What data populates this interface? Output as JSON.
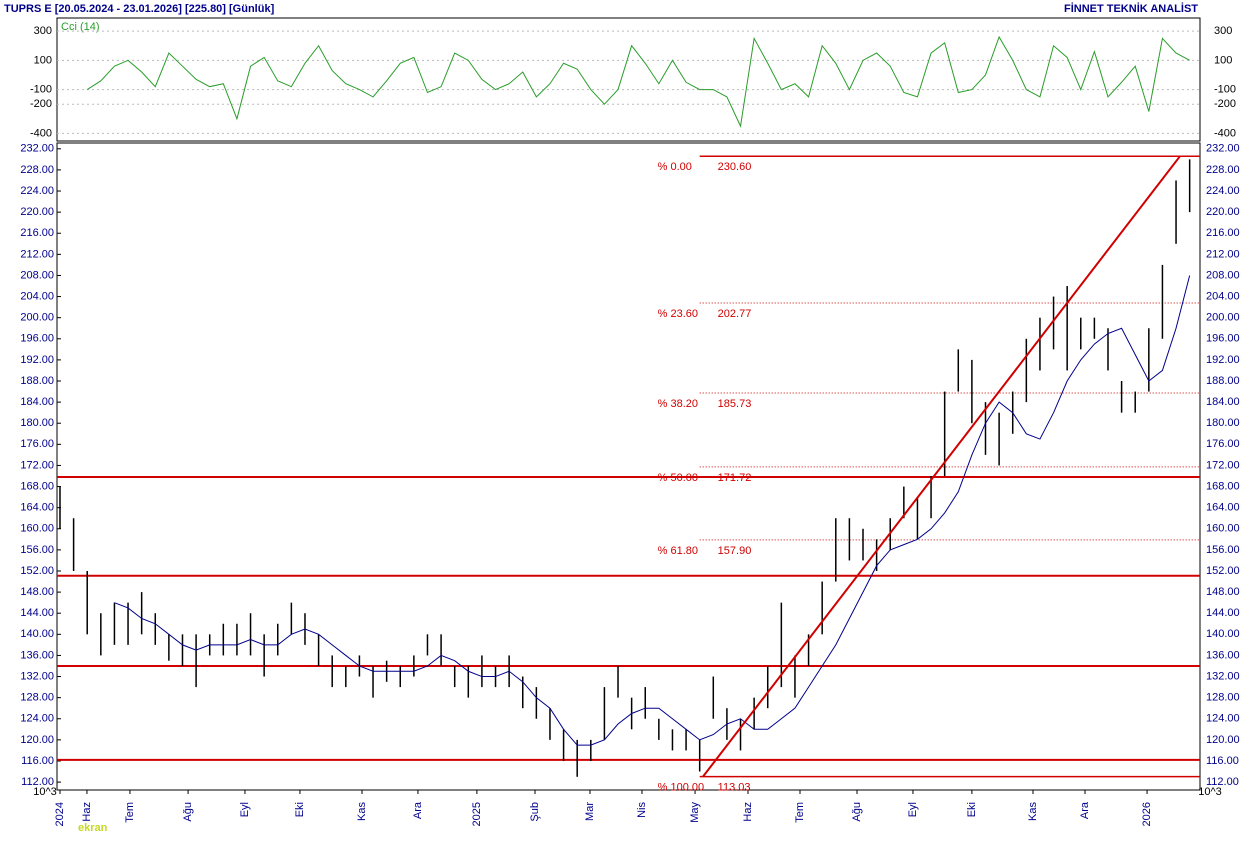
{
  "chart_data": [
    {
      "type": "line",
      "name": "Cci (14)",
      "color": "#2a9d2a",
      "xlim": [
        -0.22,
        83.76
      ],
      "ylim": [
        -445,
        383
      ],
      "yticks": [
        300,
        100,
        -100,
        -200,
        -400
      ],
      "values": [
        null,
        null,
        -100,
        -40,
        60,
        100,
        20,
        -80,
        150,
        60,
        -30,
        -80,
        -60,
        -300,
        60,
        120,
        -40,
        -80,
        80,
        200,
        30,
        -60,
        -100,
        -150,
        -40,
        80,
        120,
        -120,
        -80,
        150,
        100,
        -30,
        -100,
        -60,
        20,
        -150,
        -60,
        80,
        40,
        -100,
        -200,
        -100,
        200,
        80,
        -60,
        100,
        -50,
        -100,
        -100,
        -150,
        -350,
        250,
        80,
        -100,
        -60,
        -150,
        200,
        80,
        -100,
        100,
        150,
        60,
        -120,
        -150,
        150,
        220,
        -120,
        -100,
        0,
        260,
        100,
        -100,
        -150,
        200,
        120,
        -100,
        160,
        -150,
        -50,
        60,
        -250,
        250,
        150,
        100
      ]
    },
    {
      "type": "hl_bar",
      "title": "TUPRS E  [20.05.2024 - 23.01.2026]  [225.80]  [Günlük]",
      "source": "FİNNET TEKNİK ANALİST",
      "unit": "10^3",
      "watermark": "ekran",
      "color": "#000000",
      "xlim": [
        -0.22,
        83.76
      ],
      "xticks": [
        {
          "value": 0,
          "label": "2024"
        },
        {
          "value": 1.98,
          "label": "Haz"
        },
        {
          "value": 5.14,
          "label": "Tem"
        },
        {
          "value": 9.41,
          "label": "Ağu"
        },
        {
          "value": 13.59,
          "label": "Eyl"
        },
        {
          "value": 17.63,
          "label": "Eki"
        },
        {
          "value": 22.19,
          "label": "Kas"
        },
        {
          "value": 26.3,
          "label": "Ara"
        },
        {
          "value": 30.63,
          "label": "2025"
        },
        {
          "value": 34.9,
          "label": "Şub"
        },
        {
          "value": 38.94,
          "label": "Mar"
        },
        {
          "value": 42.76,
          "label": "Nis"
        },
        {
          "value": 46.66,
          "label": "May"
        },
        {
          "value": 50.55,
          "label": "Haz"
        },
        {
          "value": 54.37,
          "label": "Tem"
        },
        {
          "value": 58.56,
          "label": "Ağu"
        },
        {
          "value": 62.67,
          "label": "Eyl"
        },
        {
          "value": 67.0,
          "label": "Eki"
        },
        {
          "value": 71.49,
          "label": "Kas"
        },
        {
          "value": 75.31,
          "label": "Ara"
        },
        {
          "value": 79.87,
          "label": "2026"
        }
      ],
      "ylim": [
        110.5,
        233.1
      ],
      "yticks": [
        {
          "value": 232,
          "label": "232.00"
        },
        {
          "value": 228,
          "label": "228.00"
        },
        {
          "value": 224,
          "label": "224.00"
        },
        {
          "value": 220,
          "label": "220.00"
        },
        {
          "value": 216,
          "label": "216.00"
        },
        {
          "value": 212,
          "label": "212.00"
        },
        {
          "value": 208,
          "label": "208.00"
        },
        {
          "value": 204,
          "label": "204.00"
        },
        {
          "value": 200,
          "label": "200.00"
        },
        {
          "value": 196,
          "label": "196.00"
        },
        {
          "value": 192,
          "label": "192.00"
        },
        {
          "value": 188,
          "label": "188.00"
        },
        {
          "value": 184,
          "label": "184.00"
        },
        {
          "value": 180,
          "label": "180.00"
        },
        {
          "value": 176,
          "label": "176.00"
        },
        {
          "value": 172,
          "label": "172.00"
        },
        {
          "value": 168,
          "label": "168.00"
        },
        {
          "value": 164,
          "label": "164.00"
        },
        {
          "value": 160,
          "label": "160.00"
        },
        {
          "value": 156,
          "label": "156.00"
        },
        {
          "value": 152,
          "label": "152.00"
        },
        {
          "value": 148,
          "label": "148.00"
        },
        {
          "value": 144,
          "label": "144.00"
        },
        {
          "value": 140,
          "label": "140.00"
        },
        {
          "value": 136,
          "label": "136.00"
        },
        {
          "value": 132,
          "label": "132.00"
        },
        {
          "value": 128,
          "label": "128.00"
        },
        {
          "value": 124,
          "label": "124.00"
        },
        {
          "value": 120,
          "label": "120.00"
        },
        {
          "value": 116,
          "label": "116.00"
        },
        {
          "value": 112,
          "label": "112.00"
        }
      ],
      "high": [
        168,
        162,
        152,
        144,
        146,
        146,
        148,
        144,
        140,
        140,
        140,
        140,
        142,
        142,
        144,
        140,
        142,
        146,
        144,
        140,
        136,
        134,
        136,
        134,
        135,
        134,
        136,
        140,
        140,
        134,
        134,
        136,
        134,
        136,
        132,
        130,
        126,
        122,
        120,
        120,
        130,
        134,
        128,
        130,
        124,
        122,
        122,
        120,
        132,
        126,
        124,
        128,
        134,
        146,
        136,
        140,
        150,
        162,
        162,
        160,
        158,
        162,
        168,
        166,
        170,
        186,
        194,
        192,
        184,
        182,
        186,
        196,
        200,
        204,
        206,
        200,
        200,
        198,
        188,
        186,
        198,
        210,
        226,
        230
      ],
      "low": [
        160,
        152,
        140,
        136,
        138,
        138,
        140,
        138,
        135,
        134,
        130,
        136,
        136,
        136,
        136,
        132,
        136,
        140,
        138,
        134,
        130,
        130,
        132,
        128,
        131,
        130,
        132,
        136,
        134,
        130,
        128,
        130,
        130,
        130,
        126,
        124,
        120,
        116,
        113,
        116,
        120,
        128,
        122,
        124,
        120,
        118,
        118,
        114,
        124,
        120,
        118,
        122,
        126,
        130,
        128,
        134,
        140,
        150,
        154,
        154,
        152,
        156,
        162,
        158,
        162,
        170,
        186,
        180,
        174,
        172,
        178,
        184,
        190,
        194,
        190,
        194,
        196,
        190,
        182,
        182,
        186,
        196,
        214,
        220
      ],
      "ma": {
        "color": "#00008b",
        "values": [
          null,
          null,
          null,
          null,
          146,
          145,
          143,
          142,
          140,
          138,
          137,
          138,
          138,
          138,
          139,
          138,
          138,
          140,
          141,
          140,
          138,
          136,
          134,
          133,
          133,
          133,
          133,
          134,
          136,
          135,
          133,
          132,
          132,
          133,
          131,
          128,
          126,
          122,
          119,
          119,
          120,
          123,
          125,
          126,
          126,
          124,
          122,
          120,
          121,
          123,
          124,
          122,
          122,
          124,
          126,
          130,
          134,
          138,
          143,
          148,
          153,
          156,
          157,
          158,
          160,
          163,
          167,
          174,
          180,
          184,
          182,
          178,
          177,
          182,
          188,
          192,
          195,
          197,
          198,
          193,
          188,
          190,
          198,
          208
        ]
      },
      "levels": {
        "color": "#d00000",
        "values": [
          169.8,
          151.1,
          134.0,
          116.2
        ]
      },
      "fib": {
        "color": "#d00000",
        "x_start": 47.0,
        "levels": [
          {
            "label": "% 0.00",
            "value": 230.6,
            "value_label": "230.60",
            "dash": false
          },
          {
            "label": "% 23.60",
            "value": 202.77,
            "value_label": "202.77",
            "dash": true
          },
          {
            "label": "% 38.20",
            "value": 185.73,
            "value_label": "185.73",
            "dash": true
          },
          {
            "label": "% 50.00",
            "value": 171.72,
            "value_label": "171.72",
            "dash": true
          },
          {
            "label": "% 61.80",
            "value": 157.9,
            "value_label": "157.90",
            "dash": true
          },
          {
            "label": "% 100.00",
            "value": 113.03,
            "value_label": "113.03",
            "dash": false
          }
        ]
      },
      "trend_line": {
        "color": "#d00000",
        "x": [
          47.24,
          82.29
        ],
        "y": [
          113.03,
          230.6
        ]
      }
    }
  ]
}
